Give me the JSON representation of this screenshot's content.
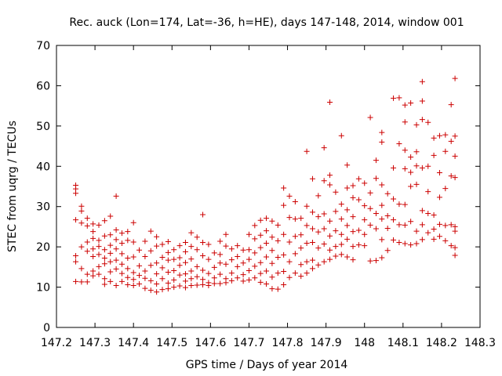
{
  "chart_data": {
    "type": "scatter",
    "title": "Rec. auck (Lon=174, Lat=-36, h=HE), days 147-148, 2014, window 001",
    "xlabel": "GPS time / Days of year 2014",
    "ylabel": "STEC from uqrg / TECUs",
    "xlim": [
      147.2,
      148.3
    ],
    "ylim": [
      0,
      70
    ],
    "x_ticks": [
      "147.2",
      "147.3",
      "147.4",
      "147.5",
      "147.6",
      "147.7",
      "147.8",
      "147.9",
      "148",
      "148.1",
      "148.2",
      "148.3"
    ],
    "y_ticks": [
      "0",
      "10",
      "20",
      "30",
      "40",
      "50",
      "60",
      "70"
    ],
    "grid": false,
    "legend": "none",
    "marker": "+",
    "color": "#cc0000",
    "points": [
      [
        147.25,
        35.3
      ],
      [
        147.25,
        34.4
      ],
      [
        147.25,
        33.3
      ],
      [
        147.25,
        26.7
      ],
      [
        147.25,
        17.8
      ],
      [
        147.25,
        16.3
      ],
      [
        147.25,
        11.4
      ],
      [
        147.265,
        30.1
      ],
      [
        147.265,
        28.9
      ],
      [
        147.265,
        25.9
      ],
      [
        147.265,
        20.0
      ],
      [
        147.265,
        14.6
      ],
      [
        147.265,
        11.3
      ],
      [
        147.28,
        27.1
      ],
      [
        147.28,
        25.2
      ],
      [
        147.28,
        21.2
      ],
      [
        147.28,
        18.9
      ],
      [
        147.28,
        13.2
      ],
      [
        147.28,
        11.3
      ],
      [
        147.295,
        25.7
      ],
      [
        147.295,
        23.8
      ],
      [
        147.295,
        22.1
      ],
      [
        147.295,
        19.5
      ],
      [
        147.295,
        17.6
      ],
      [
        147.295,
        14.0
      ],
      [
        147.295,
        12.8
      ],
      [
        147.31,
        25.4
      ],
      [
        147.31,
        21.6
      ],
      [
        147.31,
        20.1
      ],
      [
        147.31,
        18.1
      ],
      [
        147.31,
        15.1
      ],
      [
        147.31,
        13.2
      ],
      [
        147.325,
        26.5
      ],
      [
        147.325,
        22.7
      ],
      [
        147.325,
        19.3
      ],
      [
        147.325,
        17.2
      ],
      [
        147.325,
        15.8
      ],
      [
        147.325,
        12.1
      ],
      [
        147.325,
        10.7
      ],
      [
        147.34,
        27.6
      ],
      [
        147.34,
        23.0
      ],
      [
        147.34,
        20.4
      ],
      [
        147.34,
        18.4
      ],
      [
        147.34,
        16.3
      ],
      [
        147.34,
        13.8
      ],
      [
        147.34,
        11.4
      ],
      [
        147.355,
        32.6
      ],
      [
        147.355,
        24.2
      ],
      [
        147.355,
        21.8
      ],
      [
        147.355,
        19.5
      ],
      [
        147.355,
        16.7
      ],
      [
        147.355,
        14.5
      ],
      [
        147.355,
        10.4
      ],
      [
        147.37,
        23.4
      ],
      [
        147.37,
        20.9
      ],
      [
        147.37,
        18.3
      ],
      [
        147.37,
        15.7
      ],
      [
        147.37,
        13.4
      ],
      [
        147.37,
        11.4
      ],
      [
        147.385,
        23.8
      ],
      [
        147.385,
        21.6
      ],
      [
        147.385,
        17.2
      ],
      [
        147.385,
        14.6
      ],
      [
        147.385,
        12.4
      ],
      [
        147.385,
        10.6
      ],
      [
        147.4,
        26.0
      ],
      [
        147.4,
        21.2
      ],
      [
        147.4,
        17.5
      ],
      [
        147.4,
        13.6
      ],
      [
        147.4,
        11.9
      ],
      [
        147.4,
        10.4
      ],
      [
        147.415,
        19.2
      ],
      [
        147.415,
        15.3
      ],
      [
        147.415,
        12.9
      ],
      [
        147.415,
        10.8
      ],
      [
        147.43,
        21.4
      ],
      [
        147.43,
        17.6
      ],
      [
        147.43,
        14.0
      ],
      [
        147.43,
        12.2
      ],
      [
        147.43,
        9.7
      ],
      [
        147.445,
        23.9
      ],
      [
        147.445,
        19.0
      ],
      [
        147.445,
        15.4
      ],
      [
        147.445,
        11.6
      ],
      [
        147.445,
        9.2
      ],
      [
        147.46,
        22.5
      ],
      [
        147.46,
        20.2
      ],
      [
        147.46,
        16.0
      ],
      [
        147.46,
        13.3
      ],
      [
        147.46,
        10.8
      ],
      [
        147.46,
        8.8
      ],
      [
        147.475,
        20.6
      ],
      [
        147.475,
        17.4
      ],
      [
        147.475,
        14.8
      ],
      [
        147.475,
        12.1
      ],
      [
        147.475,
        9.4
      ],
      [
        147.49,
        21.3
      ],
      [
        147.49,
        18.6
      ],
      [
        147.49,
        16.7
      ],
      [
        147.49,
        13.7
      ],
      [
        147.49,
        11.0
      ],
      [
        147.49,
        9.6
      ],
      [
        147.505,
        19.3
      ],
      [
        147.505,
        16.9
      ],
      [
        147.505,
        14.1
      ],
      [
        147.505,
        11.8
      ],
      [
        147.505,
        10.0
      ],
      [
        147.52,
        20.3
      ],
      [
        147.52,
        17.3
      ],
      [
        147.52,
        15.4
      ],
      [
        147.52,
        13.0
      ],
      [
        147.52,
        10.3
      ],
      [
        147.535,
        21.1
      ],
      [
        147.535,
        18.8
      ],
      [
        147.535,
        16.1
      ],
      [
        147.535,
        13.3
      ],
      [
        147.535,
        11.5
      ],
      [
        147.535,
        9.9
      ],
      [
        147.55,
        23.5
      ],
      [
        147.55,
        20.1
      ],
      [
        147.55,
        17.0
      ],
      [
        147.55,
        14.0
      ],
      [
        147.55,
        12.1
      ],
      [
        147.55,
        10.4
      ],
      [
        147.565,
        22.4
      ],
      [
        147.565,
        19.3
      ],
      [
        147.565,
        15.1
      ],
      [
        147.565,
        12.6
      ],
      [
        147.565,
        10.5
      ],
      [
        147.58,
        28.0
      ],
      [
        147.58,
        21.1
      ],
      [
        147.58,
        17.8
      ],
      [
        147.58,
        14.2
      ],
      [
        147.58,
        11.9
      ],
      [
        147.58,
        10.6
      ],
      [
        147.595,
        20.6
      ],
      [
        147.595,
        16.9
      ],
      [
        147.595,
        13.4
      ],
      [
        147.595,
        11.1
      ],
      [
        147.595,
        10.4
      ],
      [
        147.61,
        18.5
      ],
      [
        147.61,
        14.9
      ],
      [
        147.61,
        12.3
      ],
      [
        147.61,
        10.9
      ],
      [
        147.625,
        21.4
      ],
      [
        147.625,
        18.1
      ],
      [
        147.625,
        16.0
      ],
      [
        147.625,
        13.2
      ],
      [
        147.625,
        10.9
      ],
      [
        147.64,
        23.1
      ],
      [
        147.64,
        20.2
      ],
      [
        147.64,
        15.7
      ],
      [
        147.64,
        12.1
      ],
      [
        147.64,
        11.1
      ],
      [
        147.655,
        19.5
      ],
      [
        147.655,
        16.8
      ],
      [
        147.655,
        13.5
      ],
      [
        147.655,
        11.6
      ],
      [
        147.67,
        20.3
      ],
      [
        147.67,
        17.6
      ],
      [
        147.67,
        15.1
      ],
      [
        147.67,
        12.3
      ],
      [
        147.685,
        19.2
      ],
      [
        147.685,
        16.0
      ],
      [
        147.685,
        13.1
      ],
      [
        147.685,
        11.5
      ],
      [
        147.7,
        23.1
      ],
      [
        147.7,
        19.3
      ],
      [
        147.7,
        16.9
      ],
      [
        147.7,
        14.1
      ],
      [
        147.7,
        11.8
      ],
      [
        147.715,
        25.3
      ],
      [
        147.715,
        22.0
      ],
      [
        147.715,
        18.5
      ],
      [
        147.715,
        15.2
      ],
      [
        147.715,
        12.3
      ],
      [
        147.73,
        26.6
      ],
      [
        147.73,
        22.9
      ],
      [
        147.73,
        19.8
      ],
      [
        147.73,
        16.1
      ],
      [
        147.73,
        13.4
      ],
      [
        147.73,
        11.2
      ],
      [
        147.745,
        27.1
      ],
      [
        147.745,
        24.0
      ],
      [
        147.745,
        20.9
      ],
      [
        147.745,
        17.5
      ],
      [
        147.745,
        14.0
      ],
      [
        147.745,
        10.8
      ],
      [
        147.76,
        26.4
      ],
      [
        147.76,
        22.4
      ],
      [
        147.76,
        19.1
      ],
      [
        147.76,
        15.9
      ],
      [
        147.76,
        12.5
      ],
      [
        147.76,
        9.6
      ],
      [
        147.775,
        25.4
      ],
      [
        147.775,
        21.5
      ],
      [
        147.775,
        17.4
      ],
      [
        147.775,
        13.5
      ],
      [
        147.775,
        9.5
      ],
      [
        147.79,
        34.6
      ],
      [
        147.79,
        30.3
      ],
      [
        147.79,
        23.1
      ],
      [
        147.79,
        18.0
      ],
      [
        147.79,
        13.9
      ],
      [
        147.79,
        10.6
      ],
      [
        147.805,
        32.6
      ],
      [
        147.805,
        27.3
      ],
      [
        147.805,
        21.2
      ],
      [
        147.805,
        16.3
      ],
      [
        147.805,
        12.4
      ],
      [
        147.82,
        31.2
      ],
      [
        147.82,
        26.9
      ],
      [
        147.82,
        22.6
      ],
      [
        147.82,
        18.3
      ],
      [
        147.82,
        13.5
      ],
      [
        147.835,
        27.1
      ],
      [
        147.835,
        23.0
      ],
      [
        147.835,
        19.7
      ],
      [
        147.835,
        15.6
      ],
      [
        147.835,
        12.7
      ],
      [
        147.85,
        43.7
      ],
      [
        147.85,
        30.1
      ],
      [
        147.85,
        25.3
      ],
      [
        147.85,
        20.9
      ],
      [
        147.85,
        16.3
      ],
      [
        147.85,
        13.5
      ],
      [
        147.865,
        36.9
      ],
      [
        147.865,
        28.6
      ],
      [
        147.865,
        24.5
      ],
      [
        147.865,
        21.1
      ],
      [
        147.865,
        16.7
      ],
      [
        147.865,
        14.6
      ],
      [
        147.88,
        32.7
      ],
      [
        147.88,
        27.5
      ],
      [
        147.88,
        23.7
      ],
      [
        147.88,
        19.7
      ],
      [
        147.88,
        15.5
      ],
      [
        147.895,
        44.6
      ],
      [
        147.895,
        36.4
      ],
      [
        147.895,
        28.2
      ],
      [
        147.895,
        24.5
      ],
      [
        147.895,
        20.7
      ],
      [
        147.895,
        16.3
      ],
      [
        147.91,
        55.9
      ],
      [
        147.91,
        37.8
      ],
      [
        147.91,
        35.4
      ],
      [
        147.91,
        26.4
      ],
      [
        147.91,
        22.7
      ],
      [
        147.91,
        19.2
      ],
      [
        147.91,
        16.9
      ],
      [
        147.925,
        33.6
      ],
      [
        147.925,
        28.8
      ],
      [
        147.925,
        24.0
      ],
      [
        147.925,
        20.1
      ],
      [
        147.925,
        17.7
      ],
      [
        147.94,
        47.6
      ],
      [
        147.94,
        30.6
      ],
      [
        147.94,
        26.9
      ],
      [
        147.94,
        23.1
      ],
      [
        147.94,
        20.6
      ],
      [
        147.94,
        18.1
      ],
      [
        147.955,
        40.3
      ],
      [
        147.955,
        34.6
      ],
      [
        147.955,
        29.2
      ],
      [
        147.955,
        25.3
      ],
      [
        147.955,
        21.9
      ],
      [
        147.955,
        17.5
      ],
      [
        147.97,
        35.2
      ],
      [
        147.97,
        32.2
      ],
      [
        147.97,
        27.5
      ],
      [
        147.97,
        23.8
      ],
      [
        147.97,
        20.1
      ],
      [
        147.97,
        16.8
      ],
      [
        147.985,
        36.9
      ],
      [
        147.985,
        31.7
      ],
      [
        147.985,
        24.1
      ],
      [
        147.985,
        20.5
      ],
      [
        148.0,
        35.8
      ],
      [
        148.0,
        30.2
      ],
      [
        148.0,
        26.7
      ],
      [
        148.0,
        23.1
      ],
      [
        148.0,
        20.3
      ],
      [
        148.015,
        52.1
      ],
      [
        148.015,
        33.4
      ],
      [
        148.015,
        29.5
      ],
      [
        148.015,
        25.4
      ],
      [
        148.015,
        16.5
      ],
      [
        148.03,
        41.5
      ],
      [
        148.03,
        37.0
      ],
      [
        148.03,
        28.3
      ],
      [
        148.03,
        24.5
      ],
      [
        148.03,
        16.6
      ],
      [
        148.045,
        48.4
      ],
      [
        148.045,
        46.0
      ],
      [
        148.045,
        35.4
      ],
      [
        148.045,
        30.3
      ],
      [
        148.045,
        26.9
      ],
      [
        148.045,
        21.8
      ],
      [
        148.045,
        17.3
      ],
      [
        148.06,
        33.2
      ],
      [
        148.06,
        27.7
      ],
      [
        148.06,
        24.6
      ],
      [
        148.06,
        19.1
      ],
      [
        148.075,
        56.9
      ],
      [
        148.075,
        39.6
      ],
      [
        148.075,
        31.9
      ],
      [
        148.075,
        26.7
      ],
      [
        148.075,
        21.7
      ],
      [
        148.09,
        57.0
      ],
      [
        148.09,
        45.6
      ],
      [
        148.09,
        30.6
      ],
      [
        148.09,
        25.5
      ],
      [
        148.09,
        21.1
      ],
      [
        148.105,
        55.2
      ],
      [
        148.105,
        51.0
      ],
      [
        148.105,
        44.0
      ],
      [
        148.105,
        39.4
      ],
      [
        148.105,
        30.5
      ],
      [
        148.105,
        25.4
      ],
      [
        148.105,
        20.8
      ],
      [
        148.12,
        55.7
      ],
      [
        148.12,
        42.3
      ],
      [
        148.12,
        38.5
      ],
      [
        148.12,
        35.0
      ],
      [
        148.12,
        26.3
      ],
      [
        148.12,
        20.5
      ],
      [
        148.135,
        50.3
      ],
      [
        148.135,
        43.6
      ],
      [
        148.135,
        40.1
      ],
      [
        148.135,
        35.5
      ],
      [
        148.135,
        23.9
      ],
      [
        148.135,
        20.8
      ],
      [
        148.15,
        61.0
      ],
      [
        148.15,
        56.2
      ],
      [
        148.15,
        51.6
      ],
      [
        148.15,
        39.6
      ],
      [
        148.15,
        29.0
      ],
      [
        148.15,
        25.5
      ],
      [
        148.15,
        21.8
      ],
      [
        148.165,
        50.9
      ],
      [
        148.165,
        40.0
      ],
      [
        148.165,
        33.7
      ],
      [
        148.165,
        28.3
      ],
      [
        148.165,
        23.5
      ],
      [
        148.18,
        47.0
      ],
      [
        148.18,
        42.7
      ],
      [
        148.18,
        27.9
      ],
      [
        148.18,
        24.4
      ],
      [
        148.18,
        21.9
      ],
      [
        148.195,
        47.6
      ],
      [
        148.195,
        38.4
      ],
      [
        148.195,
        32.3
      ],
      [
        148.195,
        25.6
      ],
      [
        148.195,
        22.6
      ],
      [
        148.21,
        47.8
      ],
      [
        148.21,
        43.7
      ],
      [
        148.21,
        34.5
      ],
      [
        148.21,
        25.3
      ],
      [
        148.21,
        21.5
      ],
      [
        148.225,
        55.3
      ],
      [
        148.225,
        46.2
      ],
      [
        148.225,
        37.6
      ],
      [
        148.225,
        25.5
      ],
      [
        148.225,
        20.3
      ],
      [
        148.235,
        61.8
      ],
      [
        148.235,
        47.5
      ],
      [
        148.235,
        42.5
      ],
      [
        148.235,
        37.2
      ],
      [
        148.235,
        25.0
      ],
      [
        148.235,
        23.9
      ],
      [
        148.235,
        19.8
      ],
      [
        148.235,
        17.9
      ]
    ]
  }
}
